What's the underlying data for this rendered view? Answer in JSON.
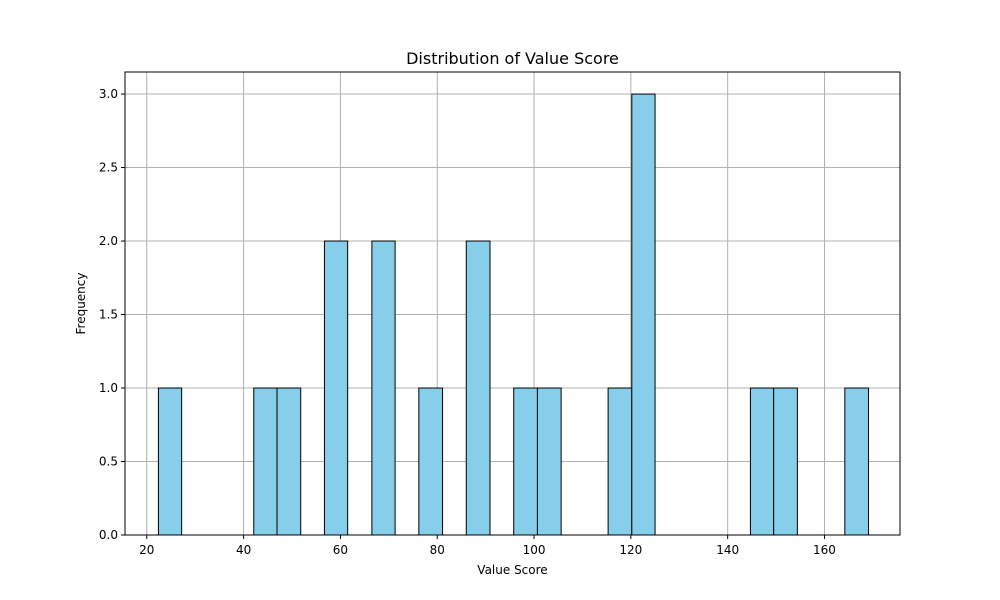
{
  "chart_data": {
    "type": "bar",
    "title": "Distribution of Value Score",
    "xlabel": "Value Score",
    "ylabel": "Frequency",
    "xlim": [
      15.5,
      175.6
    ],
    "ylim": [
      0,
      3.15
    ],
    "xticks": [
      20,
      40,
      60,
      80,
      100,
      120,
      140,
      160
    ],
    "xtick_labels": [
      "20",
      "40",
      "60",
      "80",
      "100",
      "120",
      "140",
      "160"
    ],
    "yticks": [
      0,
      0.5,
      1.0,
      1.5,
      2.0,
      2.5,
      3.0
    ],
    "ytick_labels": [
      "0.0",
      "0.5",
      "1.0",
      "1.5",
      "2.0",
      "2.5",
      "3.0"
    ],
    "grid": true,
    "bar_color": "#87ceeb",
    "edge_color": "#000000",
    "bins": [
      {
        "x0": 22.4,
        "x1": 27.2,
        "count": 1
      },
      {
        "x0": 42.1,
        "x1": 46.9,
        "count": 1
      },
      {
        "x0": 46.9,
        "x1": 51.8,
        "count": 1
      },
      {
        "x0": 56.7,
        "x1": 61.5,
        "count": 2
      },
      {
        "x0": 66.5,
        "x1": 71.3,
        "count": 2
      },
      {
        "x0": 76.2,
        "x1": 81.1,
        "count": 1
      },
      {
        "x0": 86.0,
        "x1": 90.9,
        "count": 2
      },
      {
        "x0": 95.8,
        "x1": 100.7,
        "count": 1
      },
      {
        "x0": 100.7,
        "x1": 105.6,
        "count": 1
      },
      {
        "x0": 115.3,
        "x1": 120.2,
        "count": 1
      },
      {
        "x0": 120.2,
        "x1": 125.0,
        "count": 3
      },
      {
        "x0": 144.7,
        "x1": 149.5,
        "count": 1
      },
      {
        "x0": 149.5,
        "x1": 154.4,
        "count": 1
      },
      {
        "x0": 164.2,
        "x1": 169.1,
        "count": 1
      }
    ]
  }
}
